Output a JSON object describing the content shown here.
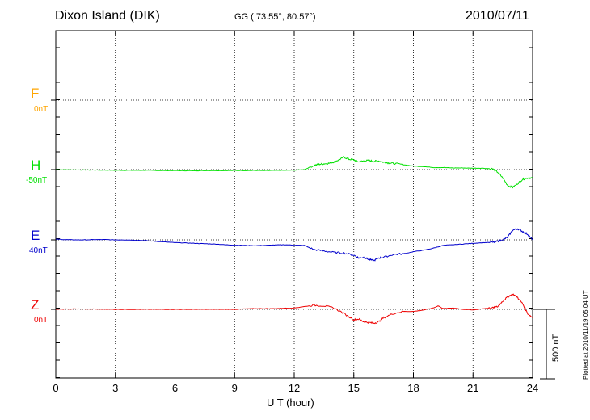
{
  "header": {
    "station": "Dixon Island (DIK)",
    "coords": "GG ( 73.55°,  80.57°)",
    "date": "2010/07/11"
  },
  "footer": {
    "plotted": "Plotted at 2010/11/19 05:04 UT",
    "scale_label": "500 nT"
  },
  "chart_data": {
    "type": "line",
    "title": "Dixon Island (DIK)",
    "xlabel": "U T (hour)",
    "ylabel": "",
    "xlim": [
      0,
      24
    ],
    "xticks": [
      0,
      3,
      6,
      9,
      12,
      15,
      18,
      21,
      24
    ],
    "tick_labels": [
      "0",
      "3",
      "6",
      "9",
      "12",
      "15",
      "18",
      "21",
      "24"
    ],
    "grid": true,
    "scale_bar_nT": 500,
    "series": [
      {
        "name": "F",
        "color": "#ffa500",
        "baseline_label": "0nT",
        "baseline_nT": 0,
        "x": [],
        "y": []
      },
      {
        "name": "H",
        "color": "#00e000",
        "baseline_label": "-50nT",
        "baseline_nT": -50,
        "x": [
          0,
          0.5,
          1,
          1.5,
          2,
          2.5,
          3,
          3.5,
          4,
          4.5,
          5,
          5.5,
          6,
          6.5,
          7,
          7.5,
          8,
          8.5,
          9,
          9.5,
          10,
          10.5,
          11,
          11.5,
          12,
          12.5,
          13,
          13.25,
          13.5,
          13.75,
          14,
          14.25,
          14.5,
          14.75,
          15,
          15.25,
          15.5,
          15.75,
          16,
          16.25,
          16.5,
          16.75,
          17,
          17.5,
          18,
          18.5,
          19,
          19.5,
          20,
          20.5,
          21,
          21.5,
          22,
          22.25,
          22.5,
          22.75,
          23,
          23.25,
          23.5,
          23.75,
          24
        ],
        "y": [
          -51,
          -51,
          -52,
          -53,
          -53,
          -54,
          -55,
          -55,
          -55,
          -55,
          -56,
          -57,
          -57,
          -58,
          -58,
          -57,
          -57,
          -57,
          -56,
          -57,
          -56,
          -57,
          -56,
          -55,
          -54,
          -50,
          -20,
          -12,
          -8,
          -5,
          5,
          20,
          40,
          25,
          20,
          5,
          12,
          15,
          10,
          12,
          3,
          -2,
          -5,
          -15,
          -25,
          -28,
          -35,
          -35,
          -38,
          -38,
          -40,
          -40,
          -45,
          -70,
          -110,
          -165,
          -178,
          -150,
          -120,
          -110,
          -110
        ]
      },
      {
        "name": "E",
        "color": "#0000cc",
        "baseline_label": "40nT",
        "baseline_nT": 40,
        "x": [
          0,
          0.5,
          1,
          1.5,
          2,
          2.5,
          3,
          3.5,
          4,
          4.5,
          5,
          5.5,
          6,
          6.5,
          7,
          7.5,
          8,
          8.5,
          9,
          9.5,
          10,
          10.5,
          11,
          11.5,
          12,
          12.5,
          13,
          13.5,
          14,
          14.5,
          15,
          15.25,
          15.5,
          15.75,
          16,
          16.25,
          16.5,
          17,
          17.5,
          18,
          18.5,
          19,
          19.5,
          20,
          20.5,
          21,
          21.5,
          22,
          22.25,
          22.5,
          22.75,
          23,
          23.25,
          23.5,
          23.75,
          24
        ],
        "y": [
          45,
          42,
          40,
          40,
          42,
          42,
          40,
          40,
          38,
          35,
          30,
          25,
          20,
          18,
          15,
          12,
          10,
          5,
          2,
          0,
          -2,
          0,
          3,
          5,
          2,
          0,
          -30,
          -40,
          -50,
          -55,
          -70,
          -90,
          -85,
          -100,
          -110,
          -90,
          -85,
          -65,
          -60,
          -45,
          -35,
          -20,
          0,
          5,
          10,
          15,
          20,
          22,
          30,
          40,
          60,
          110,
          120,
          100,
          80,
          40
        ]
      },
      {
        "name": "Z",
        "color": "#ee0000",
        "baseline_label": "0nT",
        "baseline_nT": 0,
        "x": [
          0,
          0.5,
          1,
          1.5,
          2,
          2.5,
          3,
          3.5,
          4,
          4.5,
          5,
          5.5,
          6,
          6.5,
          7,
          7.5,
          8,
          8.5,
          9,
          9.5,
          10,
          10.5,
          11,
          11.5,
          12,
          12.5,
          13,
          13.5,
          14,
          14.5,
          15,
          15.25,
          15.5,
          15.75,
          16,
          16.25,
          16.5,
          17,
          17.5,
          18,
          18.5,
          19,
          19.25,
          19.5,
          20,
          20.5,
          21,
          21.5,
          22,
          22.25,
          22.5,
          22.75,
          23,
          23.25,
          23.5,
          23.75,
          24
        ],
        "y": [
          0,
          2,
          3,
          2,
          2,
          1,
          0,
          0,
          0,
          0,
          0,
          0,
          0,
          0,
          0,
          0,
          0,
          0,
          0,
          3,
          5,
          5,
          5,
          8,
          10,
          20,
          30,
          25,
          10,
          -30,
          -75,
          -70,
          -90,
          -95,
          -100,
          -90,
          -60,
          -30,
          -15,
          -15,
          -5,
          10,
          25,
          5,
          10,
          0,
          -5,
          5,
          10,
          20,
          60,
          90,
          110,
          85,
          40,
          -30,
          -60
        ]
      }
    ]
  }
}
